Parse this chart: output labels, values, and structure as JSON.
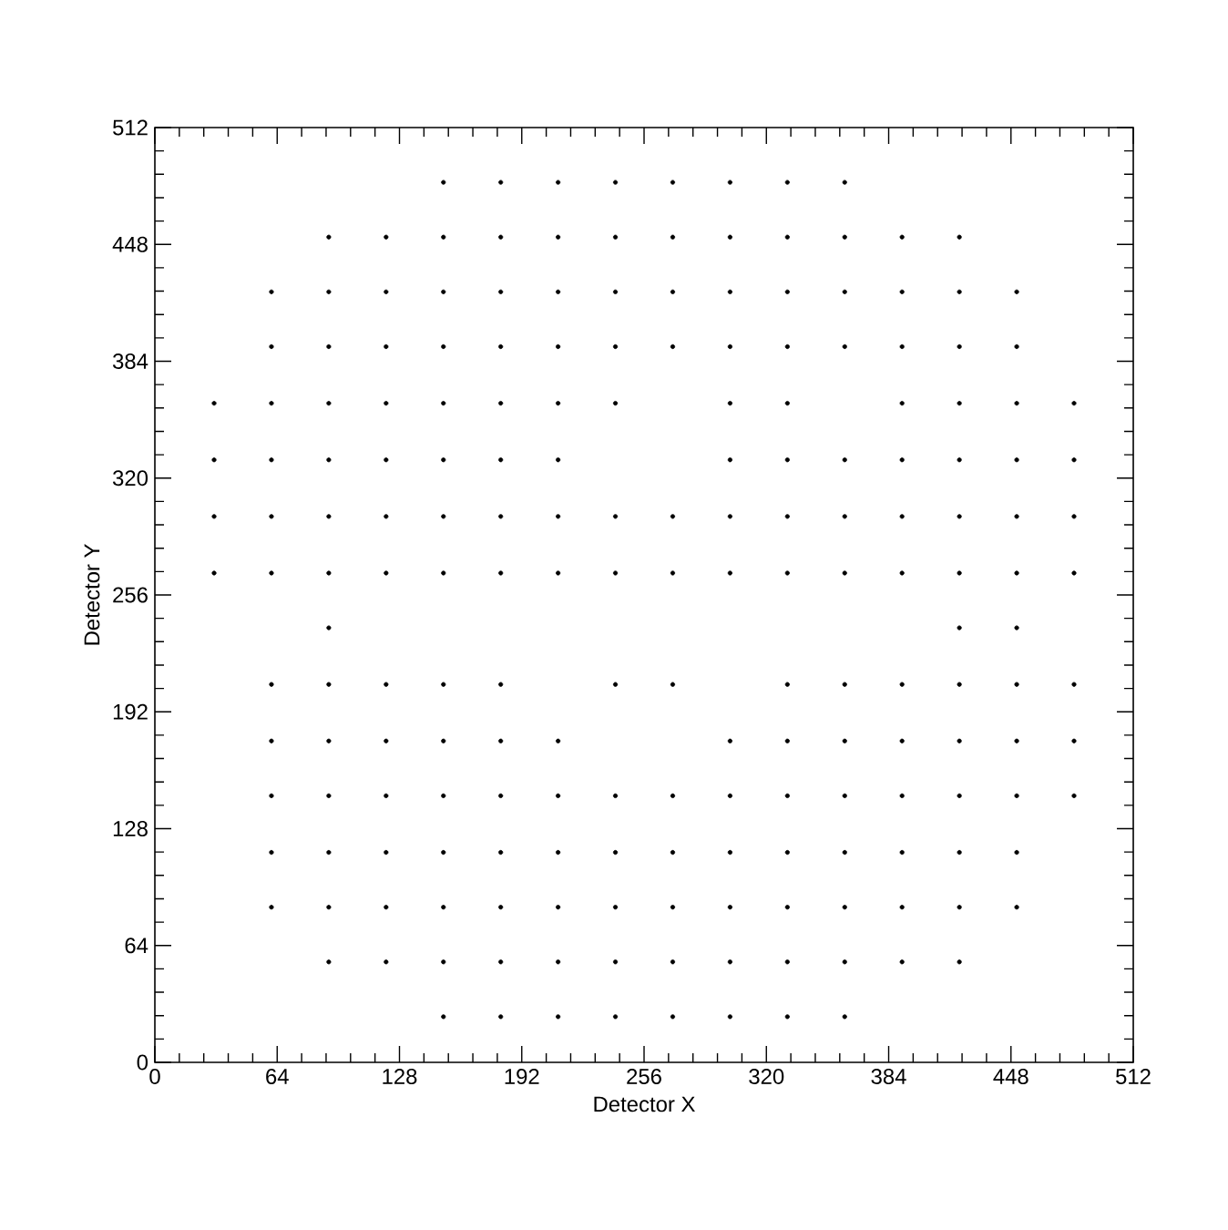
{
  "chart_data": {
    "type": "scatter",
    "xlabel": "Detector X",
    "ylabel": "Detector Y",
    "xlim": [
      0,
      512
    ],
    "ylim": [
      0,
      512
    ],
    "xticks": [
      0,
      64,
      128,
      192,
      256,
      320,
      384,
      448,
      512
    ],
    "yticks": [
      0,
      64,
      128,
      192,
      256,
      320,
      384,
      448,
      512
    ],
    "grid": false,
    "series": [
      {
        "color": "#000000",
        "x": [
          151,
          181,
          211,
          241,
          271,
          301,
          331,
          361,
          91,
          121,
          151,
          181,
          211,
          241,
          271,
          301,
          331,
          361,
          391,
          421,
          61,
          91,
          121,
          151,
          181,
          211,
          241,
          271,
          301,
          331,
          361,
          391,
          421,
          451,
          61,
          91,
          121,
          151,
          181,
          211,
          241,
          271,
          301,
          331,
          361,
          391,
          421,
          451,
          31,
          61,
          91,
          121,
          151,
          181,
          211,
          241,
          301,
          331,
          391,
          421,
          451,
          481,
          31,
          61,
          91,
          121,
          151,
          181,
          211,
          301,
          331,
          361,
          391,
          421,
          451,
          481,
          31,
          61,
          91,
          121,
          151,
          181,
          211,
          241,
          271,
          301,
          331,
          361,
          391,
          421,
          451,
          481,
          31,
          61,
          91,
          121,
          151,
          181,
          211,
          241,
          271,
          301,
          331,
          361,
          391,
          421,
          451,
          481,
          91,
          421,
          451,
          61,
          91,
          121,
          151,
          181,
          241,
          271,
          331,
          361,
          391,
          421,
          451,
          481,
          61,
          91,
          121,
          151,
          181,
          211,
          301,
          331,
          361,
          391,
          421,
          451,
          481,
          61,
          91,
          121,
          151,
          181,
          211,
          241,
          271,
          301,
          331,
          361,
          391,
          421,
          451,
          481,
          61,
          91,
          121,
          151,
          181,
          211,
          241,
          271,
          301,
          331,
          361,
          391,
          421,
          451,
          61,
          91,
          121,
          151,
          181,
          211,
          241,
          271,
          301,
          331,
          361,
          391,
          421,
          451,
          91,
          121,
          151,
          181,
          211,
          241,
          271,
          301,
          331,
          361,
          391,
          421,
          151,
          181,
          211,
          241,
          271,
          301,
          331,
          361
        ],
        "values": [
          482,
          482,
          482,
          482,
          482,
          482,
          482,
          482,
          452,
          452,
          452,
          452,
          452,
          452,
          452,
          452,
          452,
          452,
          452,
          452,
          422,
          422,
          422,
          422,
          422,
          422,
          422,
          422,
          422,
          422,
          422,
          422,
          422,
          422,
          392,
          392,
          392,
          392,
          392,
          392,
          392,
          392,
          392,
          392,
          392,
          392,
          392,
          392,
          361,
          361,
          361,
          361,
          361,
          361,
          361,
          361,
          361,
          361,
          361,
          361,
          361,
          361,
          330,
          330,
          330,
          330,
          330,
          330,
          330,
          330,
          330,
          330,
          330,
          330,
          330,
          330,
          299,
          299,
          299,
          299,
          299,
          299,
          299,
          299,
          299,
          299,
          299,
          299,
          299,
          299,
          299,
          299,
          268,
          268,
          268,
          268,
          268,
          268,
          268,
          268,
          268,
          268,
          268,
          268,
          268,
          268,
          268,
          268,
          238,
          238,
          238,
          207,
          207,
          207,
          207,
          207,
          207,
          207,
          207,
          207,
          207,
          207,
          207,
          207,
          176,
          176,
          176,
          176,
          176,
          176,
          176,
          176,
          176,
          176,
          176,
          176,
          176,
          146,
          146,
          146,
          146,
          146,
          146,
          146,
          146,
          146,
          146,
          146,
          146,
          146,
          146,
          146,
          115,
          115,
          115,
          115,
          115,
          115,
          115,
          115,
          115,
          115,
          115,
          115,
          115,
          115,
          85,
          85,
          85,
          85,
          85,
          85,
          85,
          85,
          85,
          85,
          85,
          85,
          85,
          85,
          55,
          55,
          55,
          55,
          55,
          55,
          55,
          55,
          55,
          55,
          55,
          55,
          25,
          25,
          25,
          25,
          25,
          25,
          25,
          25
        ]
      }
    ]
  }
}
